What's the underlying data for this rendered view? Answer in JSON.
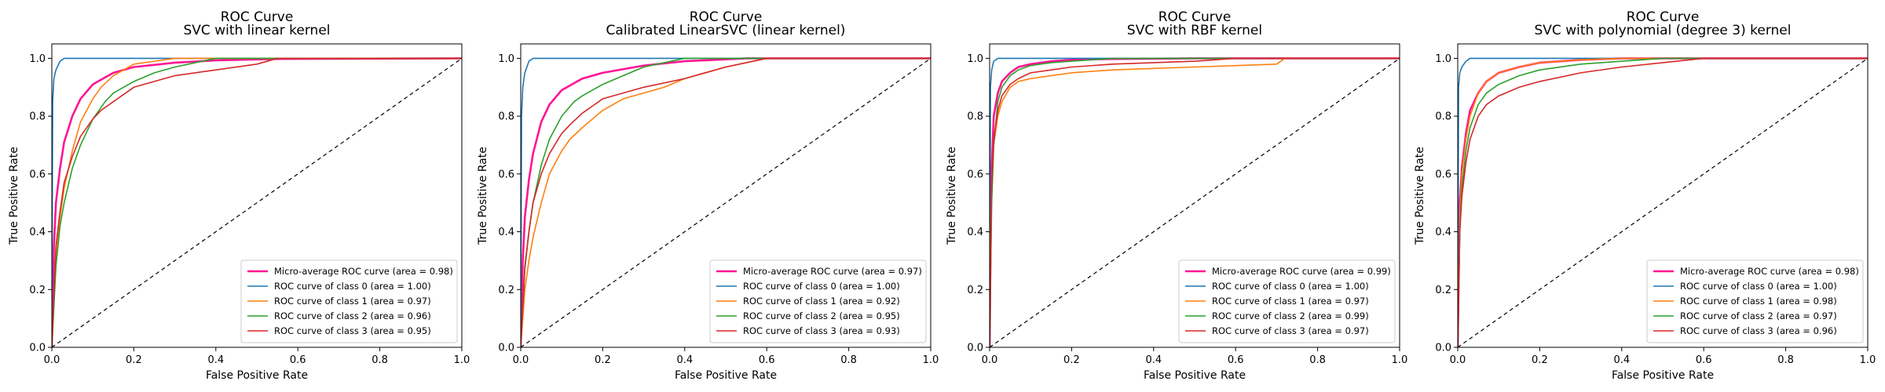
{
  "chart_data": [
    {
      "type": "line",
      "title": "ROC Curve",
      "subtitle": "SVC with linear kernel",
      "xlabel": "False Positive Rate",
      "ylabel": "True Positive Rate",
      "xlim": [
        0.0,
        1.0
      ],
      "ylim": [
        0.0,
        1.05
      ],
      "xticks": [
        "0.0",
        "0.2",
        "0.4",
        "0.6",
        "0.8",
        "1.0"
      ],
      "yticks": [
        "0.0",
        "0.2",
        "0.4",
        "0.6",
        "0.8",
        "1.0"
      ],
      "grid": false,
      "legend_position": "lower-right",
      "series": [
        {
          "name": "Micro-average ROC curve (area = 0.98)",
          "color": "#ff1493",
          "width": 2.6,
          "x": [
            0,
            0.005,
            0.01,
            0.02,
            0.03,
            0.05,
            0.07,
            0.1,
            0.15,
            0.2,
            0.3,
            0.4,
            0.55,
            1.0
          ],
          "y": [
            0,
            0.35,
            0.5,
            0.62,
            0.71,
            0.8,
            0.86,
            0.91,
            0.95,
            0.97,
            0.985,
            0.993,
            0.998,
            1.0
          ]
        },
        {
          "name": "ROC curve of class 0 (area = 1.00)",
          "color": "#1f77b4",
          "width": 1.6,
          "x": [
            0,
            0.002,
            0.005,
            0.01,
            0.02,
            0.03,
            0.05,
            0.1,
            1.0
          ],
          "y": [
            0,
            0.85,
            0.93,
            0.96,
            0.99,
            1.0,
            1.0,
            1.0,
            1.0
          ]
        },
        {
          "name": "ROC curve of class 1 (area = 0.97)",
          "color": "#ff7f0e",
          "width": 1.6,
          "x": [
            0,
            0.01,
            0.02,
            0.03,
            0.05,
            0.07,
            0.1,
            0.12,
            0.15,
            0.2,
            0.25,
            0.3,
            1.0
          ],
          "y": [
            0,
            0.3,
            0.45,
            0.55,
            0.68,
            0.78,
            0.86,
            0.9,
            0.94,
            0.98,
            0.99,
            1.0,
            1.0
          ]
        },
        {
          "name": "ROC curve of class 2 (area = 0.96)",
          "color": "#2ca02c",
          "width": 1.6,
          "x": [
            0,
            0.01,
            0.02,
            0.03,
            0.05,
            0.07,
            0.1,
            0.13,
            0.15,
            0.2,
            0.25,
            0.3,
            0.35,
            0.4,
            1.0
          ],
          "y": [
            0,
            0.28,
            0.42,
            0.5,
            0.62,
            0.7,
            0.79,
            0.85,
            0.88,
            0.92,
            0.95,
            0.97,
            0.985,
            1.0,
            1.0
          ]
        },
        {
          "name": "ROC curve of class 3 (area = 0.95)",
          "color": "#d62728",
          "width": 1.6,
          "x": [
            0,
            0.01,
            0.02,
            0.03,
            0.05,
            0.07,
            0.1,
            0.12,
            0.15,
            0.18,
            0.2,
            0.25,
            0.3,
            0.4,
            0.5,
            0.55,
            1.0
          ],
          "y": [
            0,
            0.35,
            0.47,
            0.57,
            0.66,
            0.73,
            0.79,
            0.82,
            0.85,
            0.88,
            0.9,
            0.92,
            0.94,
            0.96,
            0.98,
            1.0,
            1.0
          ]
        },
        {
          "name": "",
          "color": "#000000",
          "width": 1.2,
          "dashed": true,
          "x": [
            0,
            1
          ],
          "y": [
            0,
            1
          ]
        }
      ]
    },
    {
      "type": "line",
      "title": "ROC Curve",
      "subtitle": "Calibrated LinearSVC (linear kernel)",
      "xlabel": "False Positive Rate",
      "ylabel": "True Positive Rate",
      "xlim": [
        0.0,
        1.0
      ],
      "ylim": [
        0.0,
        1.05
      ],
      "xticks": [
        "0.0",
        "0.2",
        "0.4",
        "0.6",
        "0.8",
        "1.0"
      ],
      "yticks": [
        "0.0",
        "0.2",
        "0.4",
        "0.6",
        "0.8",
        "1.0"
      ],
      "grid": false,
      "legend_position": "lower-right",
      "series": [
        {
          "name": "Micro-average ROC curve (area = 0.97)",
          "color": "#ff1493",
          "width": 2.6,
          "x": [
            0,
            0.005,
            0.01,
            0.02,
            0.03,
            0.05,
            0.07,
            0.1,
            0.15,
            0.2,
            0.3,
            0.4,
            0.55,
            1.0
          ],
          "y": [
            0,
            0.3,
            0.45,
            0.58,
            0.67,
            0.78,
            0.84,
            0.89,
            0.93,
            0.95,
            0.975,
            0.99,
            1.0,
            1.0
          ]
        },
        {
          "name": "ROC curve of class 0 (area = 1.00)",
          "color": "#1f77b4",
          "width": 1.6,
          "x": [
            0,
            0.002,
            0.005,
            0.01,
            0.02,
            0.03,
            0.05,
            0.1,
            1.0
          ],
          "y": [
            0,
            0.8,
            0.9,
            0.95,
            0.99,
            1.0,
            1.0,
            1.0,
            1.0
          ]
        },
        {
          "name": "ROC curve of class 1 (area = 0.92)",
          "color": "#ff7f0e",
          "width": 1.6,
          "x": [
            0,
            0.01,
            0.02,
            0.03,
            0.05,
            0.07,
            0.1,
            0.12,
            0.15,
            0.2,
            0.25,
            0.3,
            0.35,
            0.4,
            0.5,
            0.6,
            1.0
          ],
          "y": [
            0,
            0.2,
            0.3,
            0.38,
            0.5,
            0.6,
            0.68,
            0.72,
            0.76,
            0.82,
            0.86,
            0.88,
            0.9,
            0.93,
            0.97,
            1.0,
            1.0
          ]
        },
        {
          "name": "ROC curve of class 2 (area = 0.95)",
          "color": "#2ca02c",
          "width": 1.6,
          "x": [
            0,
            0.01,
            0.02,
            0.03,
            0.05,
            0.07,
            0.1,
            0.13,
            0.15,
            0.2,
            0.25,
            0.3,
            0.35,
            0.4,
            1.0
          ],
          "y": [
            0,
            0.27,
            0.4,
            0.5,
            0.63,
            0.72,
            0.8,
            0.85,
            0.87,
            0.91,
            0.94,
            0.97,
            0.985,
            1.0,
            1.0
          ]
        },
        {
          "name": "ROC curve of class 3 (area = 0.93)",
          "color": "#d62728",
          "width": 1.6,
          "x": [
            0,
            0.01,
            0.02,
            0.03,
            0.05,
            0.07,
            0.1,
            0.12,
            0.15,
            0.18,
            0.2,
            0.25,
            0.3,
            0.4,
            0.5,
            0.6,
            1.0
          ],
          "y": [
            0,
            0.28,
            0.4,
            0.5,
            0.6,
            0.67,
            0.74,
            0.77,
            0.81,
            0.84,
            0.86,
            0.88,
            0.9,
            0.93,
            0.97,
            1.0,
            1.0
          ]
        },
        {
          "name": "",
          "color": "#000000",
          "width": 1.2,
          "dashed": true,
          "x": [
            0,
            1
          ],
          "y": [
            0,
            1
          ]
        }
      ]
    },
    {
      "type": "line",
      "title": "ROC Curve",
      "subtitle": "SVC with RBF kernel",
      "xlabel": "False Positive Rate",
      "ylabel": "True Positive Rate",
      "xlim": [
        0.0,
        1.0
      ],
      "ylim": [
        0.0,
        1.05
      ],
      "xticks": [
        "0.0",
        "0.2",
        "0.4",
        "0.6",
        "0.8",
        "1.0"
      ],
      "yticks": [
        "0.0",
        "0.2",
        "0.4",
        "0.6",
        "0.8",
        "1.0"
      ],
      "grid": false,
      "legend_position": "lower-right",
      "series": [
        {
          "name": "Micro-average ROC curve (area = 0.99)",
          "color": "#ff1493",
          "width": 2.6,
          "x": [
            0,
            0.003,
            0.005,
            0.01,
            0.02,
            0.03,
            0.05,
            0.07,
            0.1,
            0.15,
            0.2,
            0.3,
            0.5,
            1.0
          ],
          "y": [
            0,
            0.45,
            0.62,
            0.8,
            0.88,
            0.92,
            0.95,
            0.97,
            0.98,
            0.99,
            0.995,
            0.998,
            1.0,
            1.0
          ]
        },
        {
          "name": "ROC curve of class 0 (area = 1.00)",
          "color": "#1f77b4",
          "width": 1.6,
          "x": [
            0,
            0.002,
            0.005,
            0.01,
            0.02,
            0.03,
            0.05,
            1.0
          ],
          "y": [
            0,
            0.9,
            0.96,
            0.99,
            1.0,
            1.0,
            1.0,
            1.0
          ]
        },
        {
          "name": "ROC curve of class 1 (area = 0.97)",
          "color": "#ff7f0e",
          "width": 1.6,
          "x": [
            0,
            0.003,
            0.005,
            0.01,
            0.02,
            0.03,
            0.05,
            0.07,
            0.1,
            0.15,
            0.2,
            0.3,
            0.4,
            0.5,
            0.6,
            0.7,
            0.72,
            1.0
          ],
          "y": [
            0,
            0.4,
            0.55,
            0.7,
            0.8,
            0.85,
            0.9,
            0.92,
            0.93,
            0.94,
            0.95,
            0.96,
            0.965,
            0.97,
            0.975,
            0.98,
            1.0,
            1.0
          ]
        },
        {
          "name": "ROC curve of class 2 (area = 0.99)",
          "color": "#2ca02c",
          "width": 1.6,
          "x": [
            0,
            0.005,
            0.01,
            0.02,
            0.03,
            0.05,
            0.07,
            0.1,
            0.15,
            0.2,
            0.3,
            1.0
          ],
          "y": [
            0,
            0.5,
            0.7,
            0.85,
            0.9,
            0.94,
            0.96,
            0.975,
            0.985,
            0.99,
            1.0,
            1.0
          ]
        },
        {
          "name": "ROC curve of class 3 (area = 0.97)",
          "color": "#d62728",
          "width": 1.6,
          "x": [
            0,
            0.003,
            0.005,
            0.01,
            0.02,
            0.03,
            0.05,
            0.07,
            0.1,
            0.15,
            0.2,
            0.3,
            0.4,
            0.5,
            0.6,
            1.0
          ],
          "y": [
            0,
            0.35,
            0.55,
            0.72,
            0.82,
            0.87,
            0.91,
            0.93,
            0.95,
            0.96,
            0.97,
            0.98,
            0.985,
            0.99,
            1.0,
            1.0
          ]
        },
        {
          "name": "",
          "color": "#000000",
          "width": 1.2,
          "dashed": true,
          "x": [
            0,
            1
          ],
          "y": [
            0,
            1
          ]
        }
      ]
    },
    {
      "type": "line",
      "title": "ROC Curve",
      "subtitle": "SVC with polynomial (degree 3) kernel",
      "xlabel": "False Positive Rate",
      "ylabel": "True Positive Rate",
      "xlim": [
        0.0,
        1.0
      ],
      "ylim": [
        0.0,
        1.05
      ],
      "xticks": [
        "0.0",
        "0.2",
        "0.4",
        "0.6",
        "0.8",
        "1.0"
      ],
      "yticks": [
        "0.0",
        "0.2",
        "0.4",
        "0.6",
        "0.8",
        "1.0"
      ],
      "grid": false,
      "legend_position": "lower-right",
      "series": [
        {
          "name": "Micro-average ROC curve (area = 0.98)",
          "color": "#ff1493",
          "width": 2.6,
          "x": [
            0,
            0.005,
            0.01,
            0.02,
            0.03,
            0.05,
            0.07,
            0.1,
            0.15,
            0.2,
            0.3,
            0.4,
            1.0
          ],
          "y": [
            0,
            0.5,
            0.62,
            0.74,
            0.82,
            0.88,
            0.92,
            0.95,
            0.97,
            0.985,
            0.995,
            1.0,
            1.0
          ]
        },
        {
          "name": "ROC curve of class 0 (area = 1.00)",
          "color": "#1f77b4",
          "width": 1.6,
          "x": [
            0,
            0.002,
            0.005,
            0.01,
            0.02,
            0.03,
            0.05,
            1.0
          ],
          "y": [
            0,
            0.9,
            0.95,
            0.97,
            0.99,
            1.0,
            1.0,
            1.0
          ]
        },
        {
          "name": "ROC curve of class 1 (area = 0.98)",
          "color": "#ff7f0e",
          "width": 1.6,
          "x": [
            0,
            0.005,
            0.01,
            0.02,
            0.03,
            0.05,
            0.07,
            0.1,
            0.15,
            0.2,
            0.3,
            0.4,
            1.0
          ],
          "y": [
            0,
            0.45,
            0.6,
            0.72,
            0.8,
            0.88,
            0.92,
            0.95,
            0.97,
            0.985,
            0.995,
            1.0,
            1.0
          ]
        },
        {
          "name": "ROC curve of class 2 (area = 0.97)",
          "color": "#2ca02c",
          "width": 1.6,
          "x": [
            0,
            0.005,
            0.01,
            0.02,
            0.03,
            0.05,
            0.07,
            0.1,
            0.15,
            0.2,
            0.3,
            0.4,
            0.5,
            1.0
          ],
          "y": [
            0,
            0.4,
            0.55,
            0.68,
            0.76,
            0.84,
            0.88,
            0.91,
            0.94,
            0.96,
            0.98,
            0.99,
            1.0,
            1.0
          ]
        },
        {
          "name": "ROC curve of class 3 (area = 0.96)",
          "color": "#d62728",
          "width": 1.6,
          "x": [
            0,
            0.005,
            0.01,
            0.02,
            0.03,
            0.05,
            0.07,
            0.1,
            0.15,
            0.2,
            0.3,
            0.4,
            0.5,
            0.6,
            1.0
          ],
          "y": [
            0,
            0.4,
            0.52,
            0.64,
            0.72,
            0.8,
            0.84,
            0.87,
            0.9,
            0.92,
            0.95,
            0.97,
            0.985,
            1.0,
            1.0
          ]
        },
        {
          "name": "",
          "color": "#000000",
          "width": 1.2,
          "dashed": true,
          "x": [
            0,
            1
          ],
          "y": [
            0,
            1
          ]
        }
      ]
    }
  ]
}
